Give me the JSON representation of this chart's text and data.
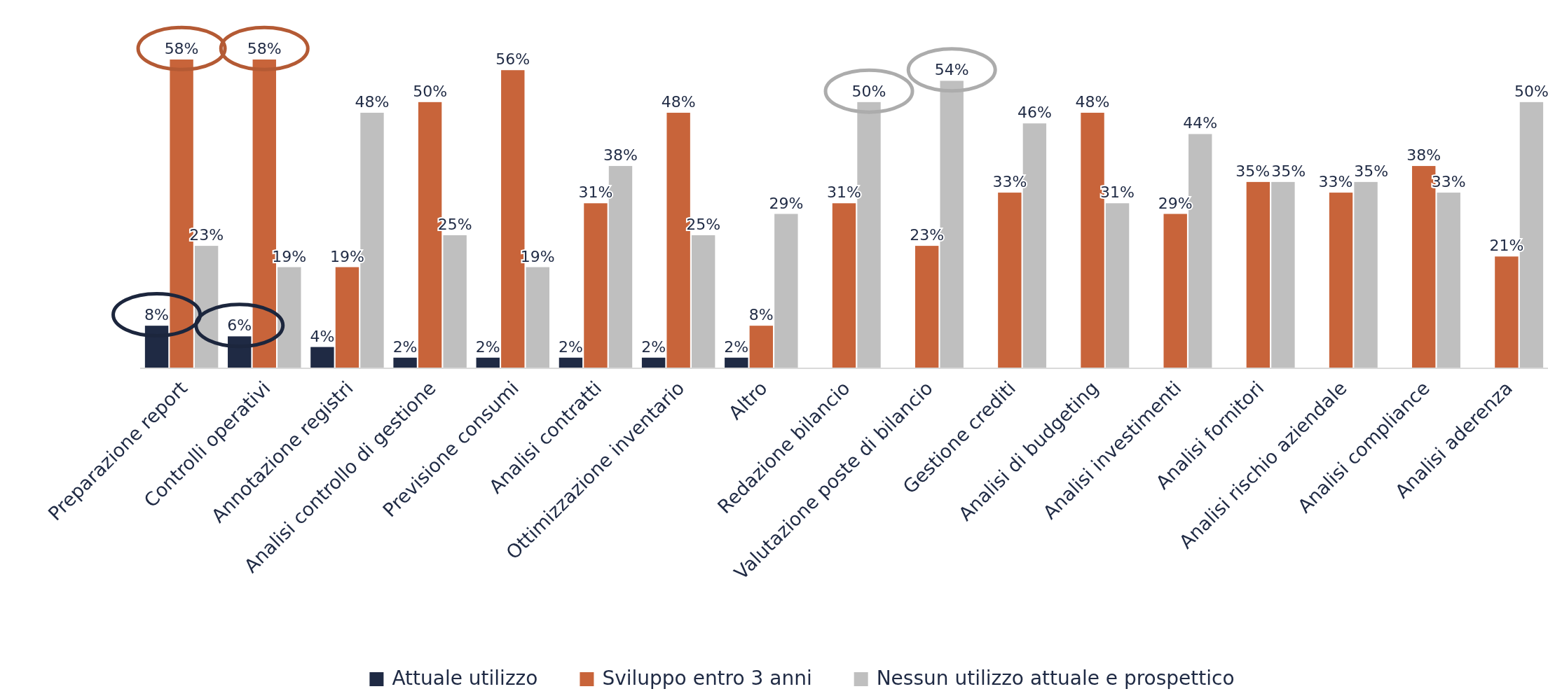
{
  "chart_data": {
    "type": "bar",
    "categories": [
      "Preparazione report",
      "Controlli operativi",
      "Annotazione registri",
      "Analisi controllo di gestione",
      "Previsione consumi",
      "Analisi contratti",
      "Ottimizzazione inventario",
      "Altro",
      "Redazione bilancio",
      "Valutazione poste di bilancio",
      "Gestione crediti",
      "Analisi di budgeting",
      "Analisi investimenti",
      "Analisi fornitori",
      "Analisi rischio aziendale",
      "Analisi compliance",
      "Analisi aderenza"
    ],
    "series": [
      {
        "name": "Attuale utilizzo",
        "color": "#1f2a44",
        "values": [
          8,
          6,
          4,
          2,
          2,
          2,
          2,
          2,
          null,
          null,
          null,
          null,
          null,
          null,
          null,
          null,
          null
        ],
        "value_labels": [
          "8%",
          "6%",
          "4%",
          "2%",
          "2%",
          "2%",
          "2%",
          "2%",
          null,
          null,
          null,
          null,
          null,
          null,
          null,
          null,
          null
        ]
      },
      {
        "name": "Sviluppo entro 3 anni",
        "color": "#c8643a",
        "values": [
          58,
          58,
          19,
          50,
          56,
          31,
          48,
          8,
          31,
          23,
          33,
          48,
          29,
          35,
          33,
          38,
          21
        ],
        "value_labels": [
          "58%",
          "58%",
          "19%",
          "50%",
          "56%",
          "31%",
          "48%",
          "8%",
          "31%",
          "23%",
          "33%",
          "48%",
          "29%",
          "35%",
          "33%",
          "38%",
          "21%"
        ]
      },
      {
        "name": "Nessun utilizzo attuale e prospettico",
        "color": "#bfbfbf",
        "values": [
          23,
          19,
          48,
          25,
          19,
          38,
          25,
          29,
          50,
          54,
          46,
          31,
          44,
          35,
          35,
          33,
          50
        ],
        "value_labels": [
          "23%",
          "19%",
          "48%",
          "25%",
          "19%",
          "38%",
          "25%",
          "29%",
          "50%",
          "54%",
          "46%",
          "31%",
          "44%",
          "35%",
          "35%",
          "33%",
          "50%"
        ]
      }
    ],
    "legend": "bottom",
    "relative": false
  }
}
